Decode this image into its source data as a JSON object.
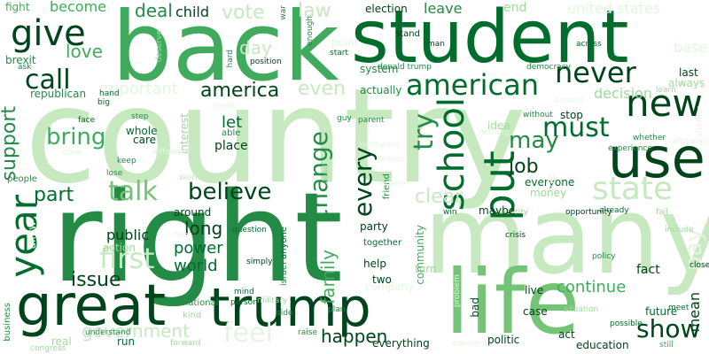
{
  "palette": {
    "darkest": "#00441b",
    "dark": "#006d2c",
    "mid": "#238b45",
    "medium": "#41ab5d",
    "light": "#74c476",
    "pale": "#a1d99b",
    "paler": "#c7e9c0",
    "faint": "#e5f5e0"
  },
  "words": [
    "country",
    "right",
    "many",
    "back",
    "student",
    "life",
    "trump",
    "great",
    "use",
    "american",
    "state",
    "school",
    "new",
    "never",
    "must",
    "put",
    "give",
    "year",
    "talk",
    "believe",
    "show",
    "call",
    "bring",
    "every",
    "change",
    "job",
    "may",
    "try",
    "first",
    "america",
    "support",
    "issue",
    "part",
    "feel",
    "clear",
    "even",
    "public",
    "long",
    "power",
    "world",
    "happen",
    "family",
    "government",
    "continue",
    "day",
    "let",
    "vote",
    "law",
    "deal",
    "become",
    "child",
    "fight",
    "love",
    "leave",
    "election",
    "end",
    "united states",
    "important",
    "decision",
    "always",
    "last",
    "fact",
    "future",
    "mean",
    "pay",
    "action",
    "place",
    "care",
    "whole",
    "around",
    "party",
    "help",
    "turn",
    "two",
    "live",
    "case",
    "education",
    "act",
    "politic",
    "bad",
    "everything",
    "run",
    "real",
    "business",
    "brexit",
    "donald trump",
    "system",
    "democracy",
    "people",
    "without",
    "stop",
    "idea",
    "nothing",
    "anyone",
    "community",
    "friend",
    "together",
    "israel",
    "question",
    "mind",
    "person",
    "side",
    "plan",
    "raise",
    "forward",
    "congress",
    "national",
    "kind",
    "still",
    "possible",
    "policy",
    "crisis",
    "security",
    "maybe",
    "win",
    "already",
    "opportunity",
    "include",
    "meet",
    "close",
    "fail",
    "actually",
    "big",
    "hand",
    "face",
    "step",
    "sure",
    "keep",
    "lose",
    "woman",
    "hear",
    "military",
    "simply",
    "everyone",
    "money",
    "rule",
    "start",
    "stand",
    "man",
    "across",
    "protect",
    "learn",
    "whether",
    "campaign",
    "another",
    "experience",
    "base",
    "war",
    "enough",
    "point",
    "hard",
    "deserve",
    "position",
    "speak",
    "interest",
    "different",
    "process",
    "regime",
    "institution",
    "parent",
    "guy",
    "able",
    "ask",
    "republican",
    "understand",
    "concern",
    "problem",
    "situation",
    "lead",
    "company",
    "allow",
    "social"
  ]
}
